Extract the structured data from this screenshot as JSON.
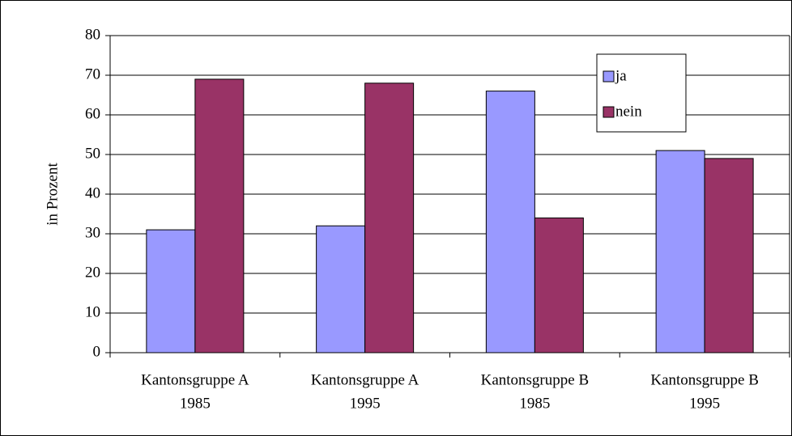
{
  "chart_data": {
    "type": "bar",
    "categories": [
      [
        "Kantonsgruppe A",
        "1985"
      ],
      [
        "Kantonsgruppe A",
        "1995"
      ],
      [
        "Kantonsgruppe B",
        "1985"
      ],
      [
        "Kantonsgruppe B",
        "1995"
      ]
    ],
    "series": [
      {
        "name": "ja",
        "color": "#9999ff",
        "values": [
          31,
          32,
          66,
          51
        ]
      },
      {
        "name": "nein",
        "color": "#993366",
        "values": [
          69,
          68,
          34,
          49
        ]
      }
    ],
    "y_label": "in Prozent",
    "ylim": [
      0,
      80
    ],
    "yticks": [
      0,
      10,
      20,
      30,
      40,
      50,
      60,
      70,
      80
    ],
    "grid": true,
    "legend": "top-right"
  }
}
